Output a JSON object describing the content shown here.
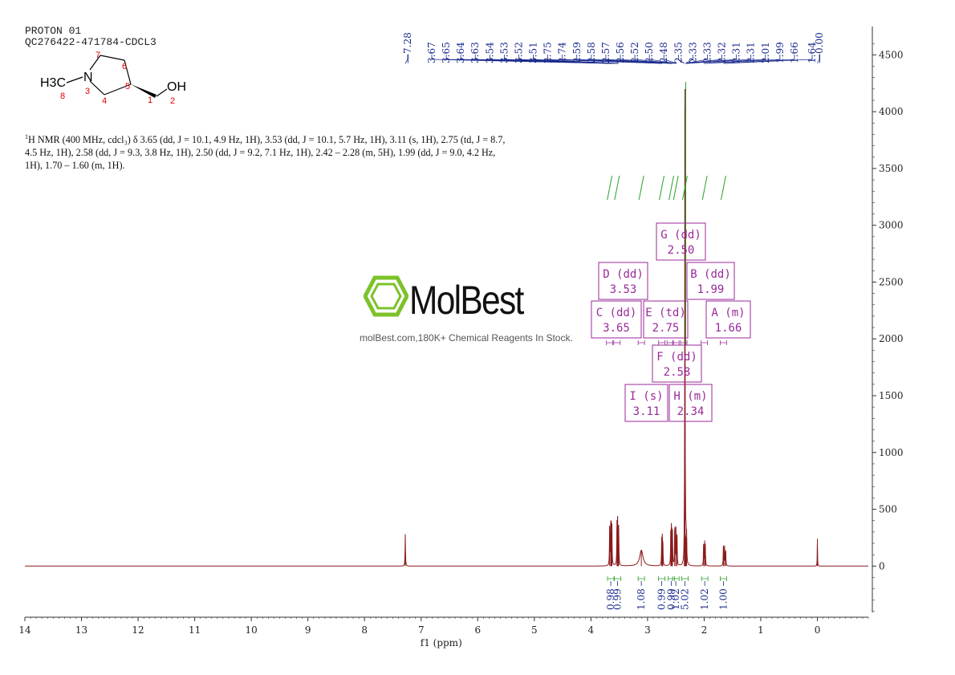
{
  "header": {
    "line1": "PROTON 01",
    "line2": "QC276422-471784-CDCL3"
  },
  "nmr_description": {
    "prefix": "H NMR (400 MHz, cdcl₃) δ 3.65 (dd, J = 10.1, 4.9 Hz, 1H), 3.53 (dd, J = 10.1, 5.7 Hz, 1H), 3.11 (s, 1H), 2.75 (td, J = 8.7, 4.5 Hz, 1H), 2.58 (dd, J = 9.3, 3.8 Hz, 1H), 2.50 (dd, J = 9.2, 7.1 Hz, 1H), 2.42 – 2.28 (m, 5H), 1.99 (dd, J = 9.0, 4.2 Hz, 1H), 1.70 – 1.60 (m, 1H).",
    "superscript": "1"
  },
  "molecule": {
    "methyl": "H3C",
    "nitrogen": "N",
    "hydroxyl": "OH",
    "atom_numbers": [
      "7",
      "6",
      "3",
      "4",
      "5",
      "1",
      "2",
      "8"
    ]
  },
  "watermark": {
    "brand": "MolBest",
    "tagline": "molBest.com,180K+ Chemical Reagents In Stock."
  },
  "chart_data": {
    "type": "line",
    "title": "",
    "xlabel": "f1 (ppm)",
    "ylabel": "",
    "x_range": [
      14,
      -0.9
    ],
    "y_range": [
      -450,
      4750
    ],
    "x_ticks": [
      14,
      13,
      12,
      11,
      10,
      9,
      8,
      7,
      6,
      5,
      4,
      3,
      2,
      1,
      0
    ],
    "y_ticks": [
      0,
      500,
      1000,
      1500,
      2000,
      2500,
      3000,
      3500,
      4000,
      4500
    ],
    "peaks": [
      {
        "ppm": 7.28,
        "height": 280,
        "width": 0.004
      },
      {
        "ppm": 3.67,
        "height": 340,
        "width": 0.004
      },
      {
        "ppm": 3.65,
        "height": 380,
        "width": 0.004
      },
      {
        "ppm": 3.64,
        "height": 300,
        "width": 0.004
      },
      {
        "ppm": 3.63,
        "height": 320,
        "width": 0.004
      },
      {
        "ppm": 3.54,
        "height": 340,
        "width": 0.004
      },
      {
        "ppm": 3.53,
        "height": 360,
        "width": 0.004
      },
      {
        "ppm": 3.52,
        "height": 280,
        "width": 0.004
      },
      {
        "ppm": 3.51,
        "height": 300,
        "width": 0.004
      },
      {
        "ppm": 3.11,
        "height": 140,
        "width": 0.035
      },
      {
        "ppm": 2.75,
        "height": 220,
        "width": 0.004
      },
      {
        "ppm": 2.74,
        "height": 230,
        "width": 0.004
      },
      {
        "ppm": 2.73,
        "height": 200,
        "width": 0.004
      },
      {
        "ppm": 2.59,
        "height": 260,
        "width": 0.004
      },
      {
        "ppm": 2.58,
        "height": 300,
        "width": 0.004
      },
      {
        "ppm": 2.57,
        "height": 280,
        "width": 0.004
      },
      {
        "ppm": 2.56,
        "height": 260,
        "width": 0.004
      },
      {
        "ppm": 2.52,
        "height": 320,
        "width": 0.004
      },
      {
        "ppm": 2.5,
        "height": 340,
        "width": 0.004
      },
      {
        "ppm": 2.48,
        "height": 280,
        "width": 0.004
      },
      {
        "ppm": 2.35,
        "height": 260,
        "width": 0.004
      },
      {
        "ppm": 2.34,
        "height": 4200,
        "width": 0.003
      },
      {
        "ppm": 2.33,
        "height": 280,
        "width": 0.004
      },
      {
        "ppm": 2.32,
        "height": 260,
        "width": 0.004
      },
      {
        "ppm": 2.31,
        "height": 240,
        "width": 0.004
      },
      {
        "ppm": 2.01,
        "height": 190,
        "width": 0.004
      },
      {
        "ppm": 1.99,
        "height": 200,
        "width": 0.004
      },
      {
        "ppm": 1.98,
        "height": 170,
        "width": 0.004
      },
      {
        "ppm": 1.66,
        "height": 180,
        "width": 0.004
      },
      {
        "ppm": 1.64,
        "height": 170,
        "width": 0.004
      },
      {
        "ppm": 1.62,
        "height": 140,
        "width": 0.004
      },
      {
        "ppm": 0.0,
        "height": 240,
        "width": 0.003
      }
    ],
    "peak_labels": [
      "7.28",
      "3.67",
      "3.65",
      "3.64",
      "3.63",
      "3.54",
      "3.53",
      "3.52",
      "3.51",
      "2.75",
      "2.74",
      "2.59",
      "2.58",
      "2.57",
      "2.56",
      "2.52",
      "2.50",
      "2.48",
      "2.35",
      "2.33",
      "2.33",
      "2.32",
      "2.31",
      "2.31",
      "2.01",
      "1.99",
      "1.66",
      "1.64",
      "0.00"
    ],
    "multiplets": [
      {
        "letter": "G",
        "type": "dd",
        "ppm": "2.50"
      },
      {
        "letter": "D",
        "type": "dd",
        "ppm": "3.53"
      },
      {
        "letter": "B",
        "type": "dd",
        "ppm": "1.99"
      },
      {
        "letter": "C",
        "type": "dd",
        "ppm": "3.65"
      },
      {
        "letter": "E",
        "type": "td",
        "ppm": "2.75"
      },
      {
        "letter": "A",
        "type": "m",
        "ppm": "1.66"
      },
      {
        "letter": "F",
        "type": "dd",
        "ppm": "2.58"
      },
      {
        "letter": "I",
        "type": "s",
        "ppm": "3.11"
      },
      {
        "letter": "H",
        "type": "m",
        "ppm": "2.34"
      }
    ],
    "integrals": [
      {
        "ppm": 3.65,
        "value": "0.98"
      },
      {
        "ppm": 3.53,
        "value": "0.99"
      },
      {
        "ppm": 3.11,
        "value": "1.08"
      },
      {
        "ppm": 2.75,
        "value": "0.99"
      },
      {
        "ppm": 2.58,
        "value": "0.99"
      },
      {
        "ppm": 2.5,
        "value": "1.02"
      },
      {
        "ppm": 2.34,
        "value": "5.02"
      },
      {
        "ppm": 1.99,
        "value": "1.02"
      },
      {
        "ppm": 1.66,
        "value": "1.00"
      }
    ],
    "colors": {
      "spectrum": "#8b1a1a",
      "peak_label": "#1a2a8c",
      "integral": "#2aa02a",
      "multiplet": "#9a2a9a",
      "axis": "#333333"
    }
  }
}
